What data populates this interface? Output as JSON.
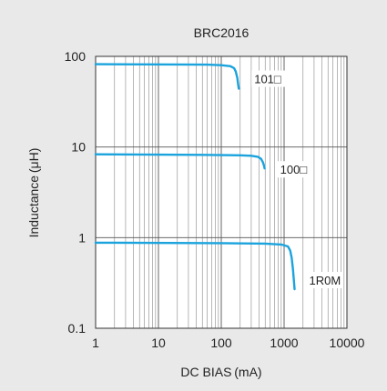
{
  "chart_data": {
    "type": "line",
    "title": "BRC2016",
    "xlabel": "DC BIAS (mA)",
    "ylabel": "Inductance (μH)",
    "xscale": "log",
    "yscale": "log",
    "xlim": [
      1,
      10000
    ],
    "ylim": [
      0.1,
      100
    ],
    "grid": true,
    "x_ticks": [
      "1",
      "10",
      "100",
      "1000",
      "10000"
    ],
    "y_ticks": [
      "0.1",
      "1",
      "10",
      "100"
    ],
    "series": [
      {
        "name": "101□",
        "points": [
          [
            1,
            82
          ],
          [
            20,
            81.5
          ],
          [
            60,
            81
          ],
          [
            100,
            80
          ],
          [
            140,
            78
          ],
          [
            160,
            74
          ],
          [
            170,
            68
          ],
          [
            180,
            58
          ],
          [
            185,
            50
          ],
          [
            190,
            44
          ]
        ]
      },
      {
        "name": "100□",
        "points": [
          [
            1,
            8.3
          ],
          [
            50,
            8.2
          ],
          [
            200,
            8.1
          ],
          [
            300,
            8.0
          ],
          [
            380,
            7.8
          ],
          [
            430,
            7.4
          ],
          [
            460,
            6.8
          ],
          [
            480,
            6.2
          ],
          [
            490,
            5.8
          ]
        ]
      },
      {
        "name": "1R0M",
        "points": [
          [
            1,
            0.88
          ],
          [
            100,
            0.87
          ],
          [
            500,
            0.86
          ],
          [
            900,
            0.84
          ],
          [
            1150,
            0.8
          ],
          [
            1250,
            0.72
          ],
          [
            1320,
            0.6
          ],
          [
            1380,
            0.45
          ],
          [
            1430,
            0.34
          ],
          [
            1470,
            0.27
          ]
        ]
      }
    ],
    "line_color": "#1aa3dd"
  }
}
